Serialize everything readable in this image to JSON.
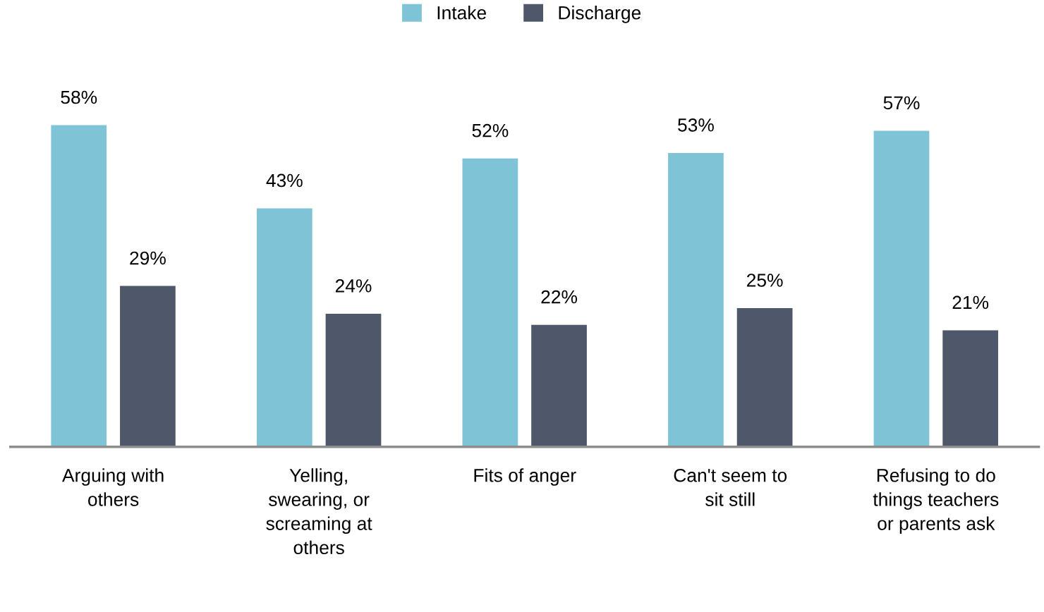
{
  "chart_data": {
    "type": "bar",
    "categories": [
      "Arguing with\nothers",
      "Yelling,\nswearing, or\nscreaming at\nothers",
      "Fits of anger",
      "Can't seem to\nsit still",
      "Refusing to do\nthings teachers\nor parents ask"
    ],
    "series": [
      {
        "name": "Intake",
        "color": "#7fc4d6",
        "values": [
          58,
          43,
          52,
          53,
          57
        ],
        "value_labels": [
          "58%",
          "43%",
          "52%",
          "53%",
          "57%"
        ]
      },
      {
        "name": "Discharge",
        "color": "#4f586b",
        "values": [
          29,
          24,
          22,
          25,
          21
        ],
        "value_labels": [
          "29%",
          "24%",
          "22%",
          "25%",
          "21%"
        ]
      }
    ],
    "legend": "top",
    "grid": false
  }
}
